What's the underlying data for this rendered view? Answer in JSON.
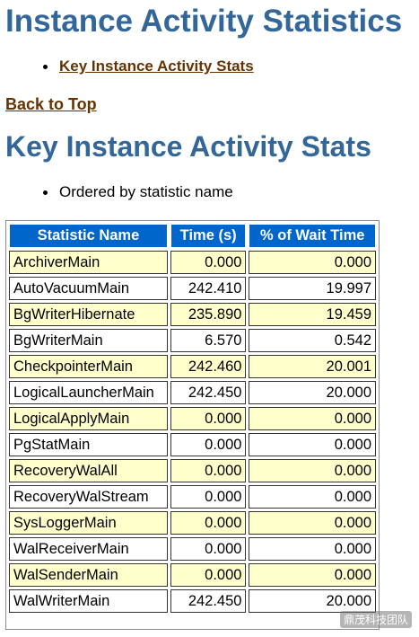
{
  "page": {
    "title": "Instance Activity Statistics",
    "toc": [
      {
        "label": "Key Instance Activity Stats"
      }
    ],
    "back_to_top": "Back to Top",
    "section_title": "Key Instance Activity Stats",
    "note": "Ordered by statistic name"
  },
  "colors": {
    "heading": "#336699",
    "link": "#663300",
    "header_bg": "#0066cc",
    "row_alt_bg": "#ffffcc"
  },
  "table": {
    "headers": [
      "Statistic Name",
      "Time (s)",
      "% of Wait Time"
    ],
    "rows": [
      [
        "ArchiverMain",
        "0.000",
        "0.000"
      ],
      [
        "AutoVacuumMain",
        "242.410",
        "19.997"
      ],
      [
        "BgWriterHibernate",
        "235.890",
        "19.459"
      ],
      [
        "BgWriterMain",
        "6.570",
        "0.542"
      ],
      [
        "CheckpointerMain",
        "242.460",
        "20.001"
      ],
      [
        "LogicalLauncherMain",
        "242.450",
        "20.000"
      ],
      [
        "LogicalApplyMain",
        "0.000",
        "0.000"
      ],
      [
        "PgStatMain",
        "0.000",
        "0.000"
      ],
      [
        "RecoveryWalAll",
        "0.000",
        "0.000"
      ],
      [
        "RecoveryWalStream",
        "0.000",
        "0.000"
      ],
      [
        "SysLoggerMain",
        "0.000",
        "0.000"
      ],
      [
        "WalReceiverMain",
        "0.000",
        "0.000"
      ],
      [
        "WalSenderMain",
        "0.000",
        "0.000"
      ],
      [
        "WalWriterMain",
        "242.450",
        "20.000"
      ]
    ]
  },
  "watermark": "鼎茂科技团队"
}
